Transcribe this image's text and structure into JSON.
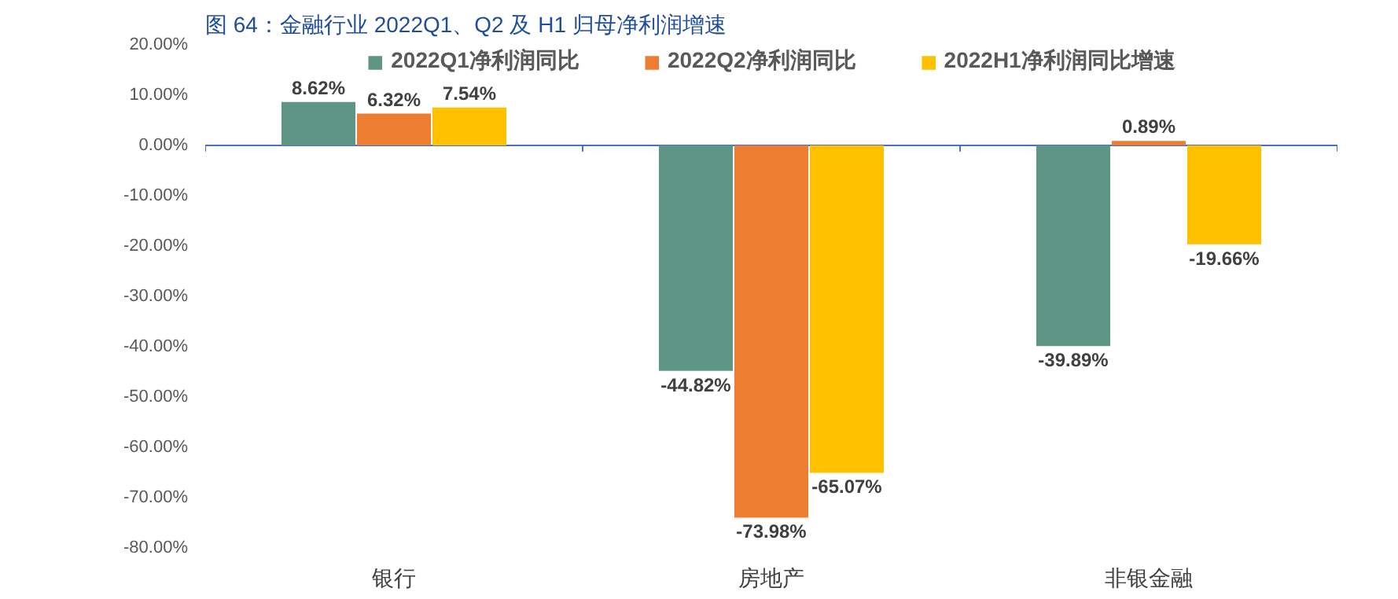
{
  "chart_data": {
    "type": "bar",
    "title": "图 64：金融行业 2022Q1、Q2 及 H1 归母净利润增速",
    "categories": [
      "银行",
      "房地产",
      "非银金融"
    ],
    "series": [
      {
        "name": "2022Q1净利润同比",
        "color": "#5e9585",
        "values": [
          8.62,
          -44.82,
          -39.89
        ],
        "value_labels": [
          "8.62%",
          "-44.82%",
          "-39.89%"
        ]
      },
      {
        "name": "2022Q2净利润同比",
        "color": "#ed7d31",
        "values": [
          6.32,
          -73.98,
          0.89
        ],
        "value_labels": [
          "6.32%",
          "-73.98%",
          "0.89%"
        ]
      },
      {
        "name": "2022H1净利润同比增速",
        "color": "#ffc000",
        "values": [
          7.54,
          -65.07,
          -19.66
        ],
        "value_labels": [
          "7.54%",
          "-65.07%",
          "-19.66%"
        ]
      }
    ],
    "ylim": [
      -80,
      20
    ],
    "yticks": [
      {
        "value": 20,
        "label": "20.00%"
      },
      {
        "value": 10,
        "label": "10.00%"
      },
      {
        "value": 0,
        "label": "0.00%"
      },
      {
        "value": -10,
        "label": "-10.00%"
      },
      {
        "value": -20,
        "label": "-20.00%"
      },
      {
        "value": -30,
        "label": "-30.00%"
      },
      {
        "value": -40,
        "label": "-40.00%"
      },
      {
        "value": -50,
        "label": "-50.00%"
      },
      {
        "value": -60,
        "label": "-60.00%"
      },
      {
        "value": -70,
        "label": "-70.00%"
      },
      {
        "value": -80,
        "label": "-80.00%"
      }
    ],
    "ref_lines": [
      {
        "axis": "y",
        "value": 0,
        "color": "#4472c4"
      }
    ],
    "grid": false,
    "legend": "top"
  }
}
